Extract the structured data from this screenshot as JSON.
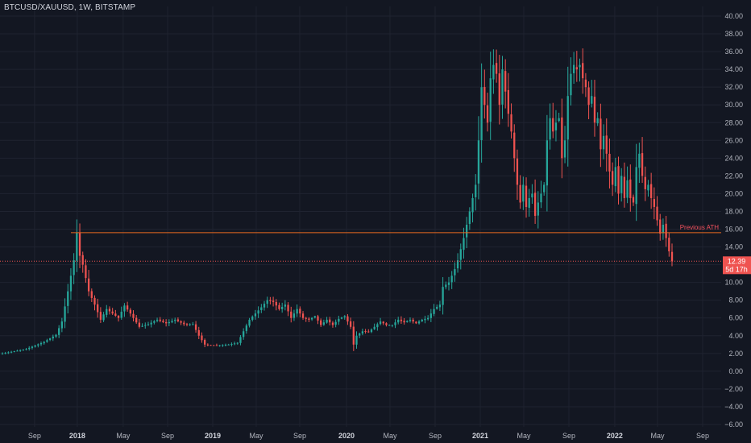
{
  "header": {
    "symbol": "BTCUSD/XAUUSD, 1W, BITSTAMP"
  },
  "colors": {
    "up": "#26a69a",
    "down": "#ef5350",
    "grid": "#1f2330",
    "ath_line": "#e8691f",
    "current_line": "#ef5350",
    "badge": "#ef5350"
  },
  "chart_data": {
    "type": "candlestick",
    "ylim": [
      -6,
      40
    ],
    "y_ticks": [
      "40.00",
      "38.00",
      "36.00",
      "34.00",
      "32.00",
      "30.00",
      "28.00",
      "26.00",
      "24.00",
      "22.00",
      "20.00",
      "18.00",
      "16.00",
      "14.00",
      "12.00",
      "10.00",
      "8.00",
      "6.00",
      "4.00",
      "2.00",
      "0.00",
      "−2.00",
      "−4.00",
      "−6.00"
    ],
    "x_ticks": [
      {
        "label": "Sep",
        "pos": 0.046,
        "year": false
      },
      {
        "label": "2018",
        "pos": 0.1029,
        "year": true
      },
      {
        "label": "May",
        "pos": 0.164,
        "year": false
      },
      {
        "label": "Sep",
        "pos": 0.2232,
        "year": false
      },
      {
        "label": "2019",
        "pos": 0.2833,
        "year": true
      },
      {
        "label": "May",
        "pos": 0.3412,
        "year": false
      },
      {
        "label": "Sep",
        "pos": 0.3991,
        "year": false
      },
      {
        "label": "2020",
        "pos": 0.4614,
        "year": true
      },
      {
        "label": "May",
        "pos": 0.5193,
        "year": false
      },
      {
        "label": "Sep",
        "pos": 0.5794,
        "year": false
      },
      {
        "label": "2021",
        "pos": 0.6395,
        "year": true
      },
      {
        "label": "May",
        "pos": 0.6974,
        "year": false
      },
      {
        "label": "Sep",
        "pos": 0.7575,
        "year": false
      },
      {
        "label": "2022",
        "pos": 0.8186,
        "year": true
      },
      {
        "label": "May",
        "pos": 0.8755,
        "year": false
      },
      {
        "label": "Sep",
        "pos": 0.9356,
        "year": false
      }
    ],
    "anchors": [
      [
        0,
        2.0
      ],
      [
        8,
        2.5
      ],
      [
        14,
        3.3
      ],
      [
        18,
        4.1
      ],
      [
        20,
        5.6
      ],
      [
        22,
        9.0
      ],
      [
        24,
        12.5
      ],
      [
        25,
        15.6
      ],
      [
        26,
        13.0
      ],
      [
        27,
        12.0
      ],
      [
        28,
        10.5
      ],
      [
        29,
        9.0
      ],
      [
        31,
        7.5
      ],
      [
        33,
        5.8
      ],
      [
        35,
        7.0
      ],
      [
        37,
        6.5
      ],
      [
        39,
        6.0
      ],
      [
        41,
        7.4
      ],
      [
        43,
        6.5
      ],
      [
        46,
        5.0
      ],
      [
        49,
        5.3
      ],
      [
        52,
        5.8
      ],
      [
        55,
        5.4
      ],
      [
        58,
        5.8
      ],
      [
        61,
        5.3
      ],
      [
        64,
        5.3
      ],
      [
        66,
        4.0
      ],
      [
        68,
        3.0
      ],
      [
        72,
        2.9
      ],
      [
        76,
        3.0
      ],
      [
        79,
        3.2
      ],
      [
        81,
        4.5
      ],
      [
        83,
        5.8
      ],
      [
        85,
        6.5
      ],
      [
        87,
        7.2
      ],
      [
        89,
        8.0
      ],
      [
        91,
        7.8
      ],
      [
        93,
        7.0
      ],
      [
        95,
        7.5
      ],
      [
        97,
        6.0
      ],
      [
        99,
        7.0
      ],
      [
        101,
        6.0
      ],
      [
        103,
        5.8
      ],
      [
        105,
        6.2
      ],
      [
        107,
        5.2
      ],
      [
        109,
        5.8
      ],
      [
        111,
        5.2
      ],
      [
        113,
        5.9
      ],
      [
        115,
        6.2
      ],
      [
        117,
        5.0
      ],
      [
        118,
        3.0
      ],
      [
        119,
        4.0
      ],
      [
        121,
        4.5
      ],
      [
        123,
        4.4
      ],
      [
        125,
        5.0
      ],
      [
        127,
        5.6
      ],
      [
        129,
        5.2
      ],
      [
        131,
        5.2
      ],
      [
        133,
        5.8
      ],
      [
        135,
        5.5
      ],
      [
        137,
        5.8
      ],
      [
        139,
        5.4
      ],
      [
        141,
        5.8
      ],
      [
        143,
        6.0
      ],
      [
        145,
        7.0
      ],
      [
        147,
        7.5
      ],
      [
        148,
        9.5
      ],
      [
        150,
        10.0
      ],
      [
        152,
        11.5
      ],
      [
        153,
        12.5
      ],
      [
        155,
        15.0
      ],
      [
        156,
        16.5
      ],
      [
        157,
        18.0
      ],
      [
        158,
        19.5
      ],
      [
        159,
        21.0
      ],
      [
        160,
        26.0
      ],
      [
        161,
        32.0
      ],
      [
        162,
        30.0
      ],
      [
        163,
        28.0
      ],
      [
        164,
        33.0
      ],
      [
        165,
        34.5
      ],
      [
        166,
        33.5
      ],
      [
        167,
        30.0
      ],
      [
        168,
        34.0
      ],
      [
        169,
        31.5
      ],
      [
        170,
        29.0
      ],
      [
        171,
        27.0
      ],
      [
        172,
        24.0
      ],
      [
        173,
        21.0
      ],
      [
        174,
        19.0
      ],
      [
        175,
        21.0
      ],
      [
        176,
        18.5
      ],
      [
        177,
        19.5
      ],
      [
        178,
        20.0
      ],
      [
        179,
        17.5
      ],
      [
        180,
        19.0
      ],
      [
        181,
        20.0
      ],
      [
        182,
        21.0
      ],
      [
        183,
        26.0
      ],
      [
        184,
        28.5
      ],
      [
        185,
        27.0
      ],
      [
        186,
        28.0
      ],
      [
        187,
        28.5
      ],
      [
        188,
        24.0
      ],
      [
        189,
        26.0
      ],
      [
        190,
        31.0
      ],
      [
        191,
        33.5
      ],
      [
        192,
        34.5
      ],
      [
        193,
        34.0
      ],
      [
        194,
        34.5
      ],
      [
        195,
        33.0
      ],
      [
        196,
        32.0
      ],
      [
        197,
        30.0
      ],
      [
        198,
        31.0
      ],
      [
        199,
        28.0
      ],
      [
        200,
        28.5
      ],
      [
        201,
        25.0
      ],
      [
        202,
        26.5
      ],
      [
        203,
        24.5
      ],
      [
        204,
        22.5
      ],
      [
        205,
        21.0
      ],
      [
        206,
        23.0
      ],
      [
        207,
        20.0
      ],
      [
        208,
        22.0
      ],
      [
        209,
        19.5
      ],
      [
        210,
        21.5
      ],
      [
        211,
        19.5
      ],
      [
        212,
        19.0
      ],
      [
        213,
        23.0
      ],
      [
        214,
        24.5
      ],
      [
        215,
        22.0
      ],
      [
        216,
        20.5
      ],
      [
        217,
        21.0
      ],
      [
        218,
        19.5
      ],
      [
        219,
        18.5
      ],
      [
        220,
        17.0
      ],
      [
        221,
        15.5
      ],
      [
        222,
        16.5
      ],
      [
        223,
        15.0
      ],
      [
        224,
        13.5
      ],
      [
        225,
        12.39
      ]
    ],
    "ath_label": "Previous ATH",
    "ath_value": 15.6,
    "current_price": "12.39",
    "countdown": "5d 17h"
  }
}
